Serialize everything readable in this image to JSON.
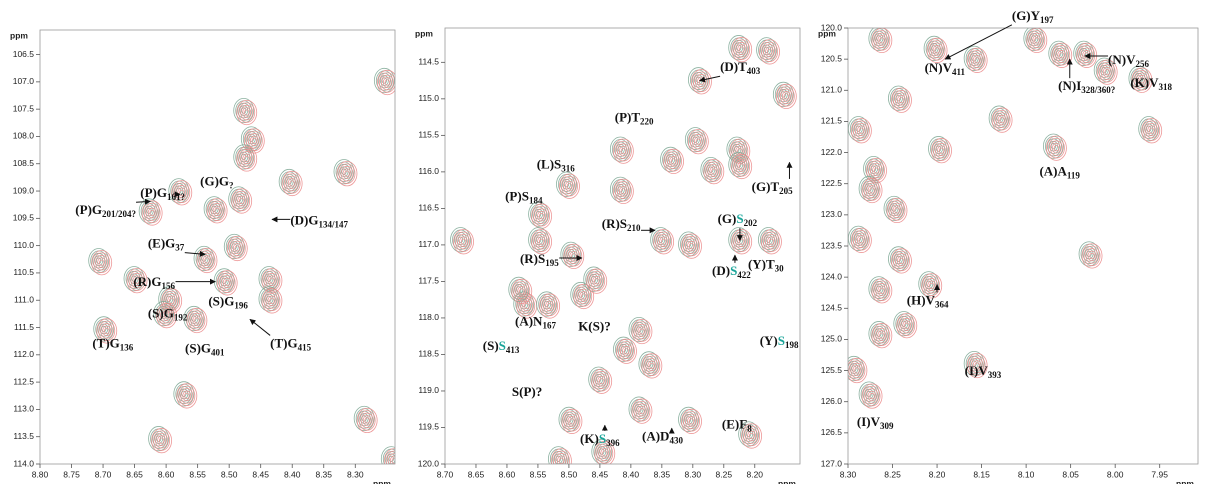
{
  "chart_data": [
    {
      "type": "nmr",
      "xlabel": "ppm",
      "ylabel": "ppm",
      "xlim": [
        8.8,
        8.237
      ],
      "ylim": [
        106.05,
        114.0
      ],
      "xticks": [
        {
          "value": 8.8,
          "label": "8.80"
        },
        8.75,
        {
          "value": 8.7,
          "label": "8.70"
        },
        8.65,
        {
          "value": 8.6,
          "label": "8.60"
        },
        8.55,
        {
          "value": 8.5,
          "label": "8.50"
        },
        8.45,
        {
          "value": 8.4,
          "label": "8.40"
        },
        8.35,
        {
          "value": 8.3,
          "label": "8.30"
        }
      ],
      "yticks": [
        106.5,
        {
          "value": 107,
          "label": "107.0"
        },
        107.5,
        {
          "value": 108,
          "label": "108.0"
        },
        108.5,
        {
          "value": 109,
          "label": "109.0"
        },
        109.5,
        {
          "value": 110,
          "label": "110.0"
        },
        110.5,
        {
          "value": 111,
          "label": "111.0"
        },
        111.5,
        {
          "value": 112,
          "label": "112.0"
        },
        112.5,
        {
          "value": 113,
          "label": "113.0"
        },
        113.5,
        {
          "value": 114,
          "label": "114.0"
        }
      ],
      "spectrum_colors": [
        "#7fa896",
        "#eb8c8c"
      ],
      "peaks": {
        "x": [
          8.475,
          8.463,
          8.475,
          8.578,
          8.522,
          8.483,
          8.403,
          8.316,
          8.625,
          8.538,
          8.49,
          8.705,
          8.649,
          8.506,
          8.435,
          8.435,
          8.594,
          8.602,
          8.554,
          8.697,
          8.57,
          8.284,
          8.61,
          8.252,
          8.241
        ],
        "y": [
          107.54,
          108.06,
          108.39,
          109.01,
          109.34,
          109.16,
          108.84,
          108.66,
          109.38,
          110.25,
          110.03,
          110.29,
          110.62,
          110.66,
          110.62,
          110.99,
          110.99,
          111.26,
          111.35,
          111.54,
          112.73,
          113.18,
          113.55,
          106.99,
          113.92
        ]
      },
      "annotations": [
        {
          "parts": [
            {
              "t": "(G)G"
            },
            {
              "t": "?",
              "sub": true
            }
          ],
          "x": 8.546,
          "y": 108.84
        },
        {
          "parts": [
            {
              "t": "(P)G"
            },
            {
              "t": "161?",
              "sub": true
            }
          ],
          "x": 8.641,
          "y": 109.05,
          "arrow": [
            8.578,
            109.06
          ]
        },
        {
          "parts": [
            {
              "t": "(P)G"
            },
            {
              "t": "201/204?",
              "sub": true
            }
          ],
          "x": 8.744,
          "y": 109.37,
          "arrow": [
            8.625,
            109.19
          ]
        },
        {
          "parts": [
            {
              "t": "(D)G"
            },
            {
              "t": "134/147",
              "sub": true
            }
          ],
          "x": 8.403,
          "y": 109.56,
          "arrow": [
            8.432,
            109.52
          ]
        },
        {
          "parts": [
            {
              "t": "(E)G"
            },
            {
              "t": "37",
              "sub": true
            }
          ],
          "x": 8.629,
          "y": 109.98,
          "arrow": [
            8.538,
            110.16
          ]
        },
        {
          "parts": [
            {
              "t": "(R)G"
            },
            {
              "t": "156",
              "sub": true
            }
          ],
          "x": 8.652,
          "y": 110.68,
          "arrow": [
            8.522,
            110.66
          ]
        },
        {
          "parts": [
            {
              "t": "(S)G"
            },
            {
              "t": "196",
              "sub": true
            }
          ],
          "x": 8.533,
          "y": 111.04
        },
        {
          "parts": [
            {
              "t": "(S)G"
            },
            {
              "t": "192",
              "sub": true
            }
          ],
          "x": 8.629,
          "y": 111.26
        },
        {
          "parts": [
            {
              "t": "(T)G"
            },
            {
              "t": "136",
              "sub": true
            }
          ],
          "x": 8.717,
          "y": 111.81
        },
        {
          "parts": [
            {
              "t": "(S)G"
            },
            {
              "t": "401",
              "sub": true
            }
          ],
          "x": 8.57,
          "y": 111.9
        },
        {
          "parts": [
            {
              "t": "(T)G"
            },
            {
              "t": "415",
              "sub": true
            }
          ],
          "x": 8.435,
          "y": 111.81,
          "arrow": [
            8.467,
            111.35
          ]
        }
      ]
    },
    {
      "type": "nmr",
      "xlabel": "ppm",
      "ylabel": "ppm",
      "xlim": [
        8.7,
        8.127
      ],
      "ylim": [
        114.03,
        120.0
      ],
      "xticks": [
        {
          "value": 8.7,
          "label": "8.70"
        },
        8.65,
        {
          "value": 8.6,
          "label": "8.60"
        },
        8.55,
        {
          "value": 8.5,
          "label": "8.50"
        },
        8.45,
        {
          "value": 8.4,
          "label": "8.40"
        },
        8.35,
        {
          "value": 8.3,
          "label": "8.30"
        },
        8.25,
        {
          "value": 8.2,
          "label": "8.20"
        }
      ],
      "yticks": [
        114.5,
        {
          "value": 115,
          "label": "115.0"
        },
        115.5,
        {
          "value": 116,
          "label": "116.0"
        },
        116.5,
        {
          "value": 117,
          "label": "117.0"
        },
        117.5,
        {
          "value": 118,
          "label": "118.0"
        },
        118.5,
        {
          "value": 119,
          "label": "119.0"
        },
        119.5,
        {
          "value": 120,
          "label": "120.0"
        }
      ],
      "spectrum_colors": [
        "#7fa896",
        "#eb8c8c"
      ],
      "peaks": {
        "x": [
          8.289,
          8.224,
          8.179,
          8.294,
          8.227,
          8.152,
          8.334,
          8.269,
          8.224,
          8.415,
          8.415,
          8.502,
          8.547,
          8.673,
          8.547,
          8.495,
          8.479,
          8.35,
          8.305,
          8.224,
          8.176,
          8.571,
          8.534,
          8.458,
          8.385,
          8.369,
          8.41,
          8.45,
          8.498,
          8.385,
          8.305,
          8.515,
          8.208,
          8.445,
          8.579
        ],
        "y": [
          114.75,
          114.31,
          114.34,
          115.57,
          115.7,
          114.95,
          115.84,
          115.98,
          115.91,
          115.7,
          116.25,
          116.18,
          116.59,
          116.94,
          116.94,
          117.14,
          117.69,
          116.94,
          117.0,
          116.94,
          116.94,
          117.82,
          117.82,
          117.48,
          118.17,
          118.64,
          118.44,
          118.85,
          119.4,
          119.26,
          119.4,
          119.94,
          119.6,
          119.84,
          117.62
        ]
      },
      "annotations": [
        {
          "parts": [
            {
              "t": "(D)T"
            },
            {
              "t": "403",
              "sub": true
            }
          ],
          "x": 8.256,
          "y": 114.58,
          "arrow": [
            8.289,
            114.75
          ]
        },
        {
          "parts": [
            {
              "t": "(P)T"
            },
            {
              "t": "220",
              "sub": true
            }
          ],
          "x": 8.426,
          "y": 115.27
        },
        {
          "parts": [
            {
              "t": "(L)S"
            },
            {
              "t": "316",
              "sub": true
            }
          ],
          "x": 8.552,
          "y": 115.91
        },
        {
          "parts": [
            {
              "t": "(G)T"
            },
            {
              "t": "205",
              "sub": true
            }
          ],
          "x": 8.205,
          "y": 116.22,
          "arrow": [
            8.144,
            115.87
          ]
        },
        {
          "parts": [
            {
              "t": "(P)S"
            },
            {
              "t": "184",
              "sub": true
            }
          ],
          "x": 8.603,
          "y": 116.35
        },
        {
          "parts": [
            {
              "t": "(R)S"
            },
            {
              "t": "210",
              "sub": true
            }
          ],
          "x": 8.447,
          "y": 116.73,
          "arrow": [
            8.361,
            116.8
          ]
        },
        {
          "parts": [
            {
              "t": "(G)"
            },
            {
              "t": "S",
              "color": "#1aa59a"
            },
            {
              "t": "202",
              "sub": true
            }
          ],
          "x": 8.26,
          "y": 116.66,
          "arrow": [
            8.224,
            116.94
          ]
        },
        {
          "parts": [
            {
              "t": "(R)S"
            },
            {
              "t": "195",
              "sub": true
            }
          ],
          "x": 8.579,
          "y": 117.21,
          "arrow": [
            8.479,
            117.18
          ]
        },
        {
          "parts": [
            {
              "t": "(D)"
            },
            {
              "t": "S",
              "color": "#1aa59a"
            },
            {
              "t": "422",
              "sub": true
            }
          ],
          "x": 8.269,
          "y": 117.37,
          "arrow": [
            8.232,
            117.14
          ]
        },
        {
          "parts": [
            {
              "t": "(Y)T"
            },
            {
              "t": "30",
              "sub": true
            }
          ],
          "x": 8.211,
          "y": 117.28
        },
        {
          "parts": [
            {
              "t": "(A)N"
            },
            {
              "t": "167",
              "sub": true
            }
          ],
          "x": 8.587,
          "y": 118.06
        },
        {
          "parts": [
            {
              "t": "K(S)?"
            }
          ],
          "x": 8.485,
          "y": 118.13
        },
        {
          "parts": [
            {
              "t": "(S)"
            },
            {
              "t": "S",
              "color": "#1aa59a"
            },
            {
              "t": "413",
              "sub": true
            }
          ],
          "x": 8.639,
          "y": 118.4
        },
        {
          "parts": [
            {
              "t": "(Y)"
            },
            {
              "t": "S",
              "color": "#1aa59a"
            },
            {
              "t": "198",
              "sub": true
            }
          ],
          "x": 8.192,
          "y": 118.33
        },
        {
          "parts": [
            {
              "t": "S(P)?"
            }
          ],
          "x": 8.592,
          "y": 119.03
        },
        {
          "parts": [
            {
              "t": "(K)"
            },
            {
              "t": "S",
              "color": "#1aa59a"
            },
            {
              "t": "396",
              "sub": true
            }
          ],
          "x": 8.482,
          "y": 119.67,
          "arrow": [
            8.442,
            119.47
          ]
        },
        {
          "parts": [
            {
              "t": "(A)D"
            },
            {
              "t": "430",
              "sub": true
            }
          ],
          "x": 8.382,
          "y": 119.64,
          "arrow": [
            8.334,
            119.51
          ]
        },
        {
          "parts": [
            {
              "t": "(E)F"
            },
            {
              "t": "8",
              "sub": true
            }
          ],
          "x": 8.253,
          "y": 119.47
        }
      ]
    },
    {
      "type": "nmr",
      "xlabel": "ppm",
      "ylabel": "ppm",
      "xlim": [
        8.3,
        7.907
      ],
      "ylim": [
        120.0,
        127.0
      ],
      "xticks": [
        {
          "value": 8.3,
          "label": "8.30"
        },
        8.25,
        {
          "value": 8.2,
          "label": "8.20"
        },
        8.15,
        {
          "value": 8.1,
          "label": "8.10"
        },
        8.05,
        {
          "value": 8.0,
          "label": "8.00"
        },
        7.95
      ],
      "yticks": [
        {
          "value": 120,
          "label": "120.0"
        },
        120.5,
        {
          "value": 121,
          "label": "121.0"
        },
        121.5,
        {
          "value": 122,
          "label": "122.0"
        },
        122.5,
        {
          "value": 123,
          "label": "123.0"
        },
        123.5,
        {
          "value": 124,
          "label": "124.0"
        },
        124.5,
        {
          "value": 125,
          "label": "125.0"
        },
        125.5,
        {
          "value": 126,
          "label": "126.0"
        },
        126.5,
        {
          "value": 127,
          "label": "127.0"
        }
      ],
      "spectrum_colors": [
        "#7fa896",
        "#eb8c8c"
      ],
      "peaks": {
        "x": [
          8.264,
          8.202,
          8.157,
          8.09,
          8.062,
          8.034,
          8.011,
          7.972,
          7.961,
          8.068,
          8.129,
          8.242,
          8.27,
          8.247,
          8.197,
          8.287,
          8.242,
          8.264,
          8.028,
          8.208,
          8.264,
          8.236,
          8.292,
          8.157,
          8.275,
          8.287,
          8.275
        ],
        "y": [
          120.18,
          120.34,
          120.5,
          120.18,
          120.42,
          120.42,
          120.69,
          120.82,
          121.63,
          121.91,
          121.46,
          121.14,
          122.27,
          122.91,
          121.95,
          123.39,
          123.72,
          124.2,
          123.64,
          124.12,
          124.92,
          124.76,
          125.48,
          125.4,
          125.89,
          121.63,
          122.59
        ]
      },
      "annotations": [
        {
          "parts": [
            {
              "t": "(G)Y"
            },
            {
              "t": "197",
              "sub": true
            }
          ],
          "x": 8.116,
          "y": 119.82,
          "arrow": [
            8.191,
            120.5
          ]
        },
        {
          "parts": [
            {
              "t": "(N)V"
            },
            {
              "t": "411",
              "sub": true
            }
          ],
          "x": 8.214,
          "y": 120.66
        },
        {
          "parts": [
            {
              "t": "(N)V"
            },
            {
              "t": "256",
              "sub": true
            }
          ],
          "x": 8.008,
          "y": 120.53,
          "arrow": [
            8.034,
            120.45
          ]
        },
        {
          "parts": [
            {
              "t": "(N)I"
            },
            {
              "t": "328/360?",
              "sub": true
            }
          ],
          "x": 8.064,
          "y": 120.95,
          "arrow": [
            8.051,
            120.5
          ]
        },
        {
          "parts": [
            {
              "t": "(K)V"
            },
            {
              "t": "318",
              "sub": true
            }
          ],
          "x": 7.983,
          "y": 120.9
        },
        {
          "parts": [
            {
              "t": "(A)A"
            },
            {
              "t": "119",
              "sub": true
            }
          ],
          "x": 8.085,
          "y": 122.32
        },
        {
          "parts": [
            {
              "t": "(H)V"
            },
            {
              "t": "364",
              "sub": true
            }
          ],
          "x": 8.234,
          "y": 124.39,
          "arrow": [
            8.2,
            124.12
          ]
        },
        {
          "parts": [
            {
              "t": "(I)V"
            },
            {
              "t": "393",
              "sub": true
            }
          ],
          "x": 8.169,
          "y": 125.52
        },
        {
          "parts": [
            {
              "t": "(I)V"
            },
            {
              "t": "309",
              "sub": true
            }
          ],
          "x": 8.29,
          "y": 126.34
        }
      ]
    }
  ]
}
